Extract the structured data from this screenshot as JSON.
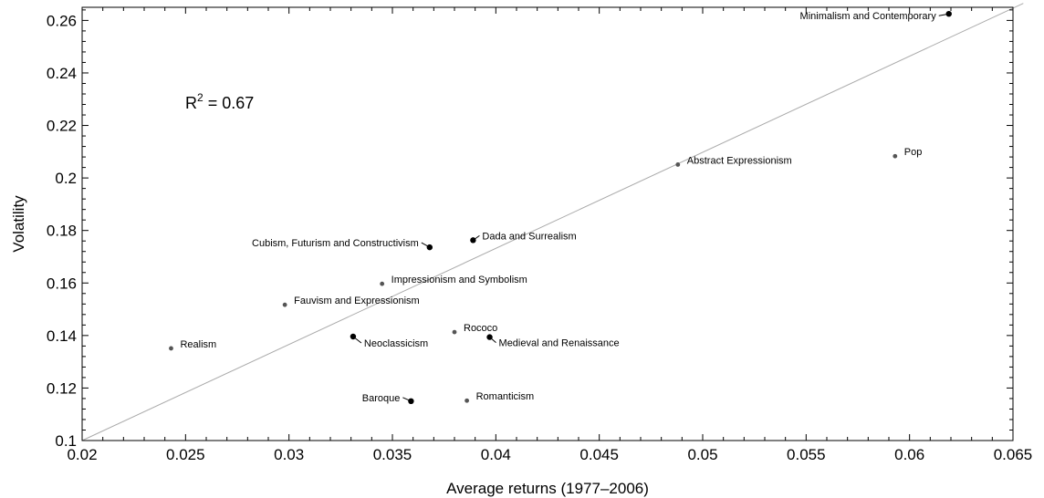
{
  "chart_data": {
    "type": "scatter",
    "xlabel": "Average returns (1977–2006)",
    "ylabel": "Volatility",
    "xlim": [
      0.02,
      0.065
    ],
    "ylim": [
      0.1,
      0.265
    ],
    "x_ticks": [
      "0.02",
      "0.025",
      "0.03",
      "0.035",
      "0.04",
      "0.045",
      "0.05",
      "0.055",
      "0.06",
      "0.065"
    ],
    "x_tick_values": [
      0.02,
      0.025,
      0.03,
      0.035,
      0.04,
      0.045,
      0.05,
      0.055,
      0.06,
      0.065
    ],
    "y_ticks": [
      "0.1",
      "0.12",
      "0.14",
      "0.16",
      "0.18",
      "0.2",
      "0.22",
      "0.24",
      "0.26"
    ],
    "y_tick_values": [
      0.1,
      0.12,
      0.14,
      0.16,
      0.18,
      0.2,
      0.22,
      0.24,
      0.26
    ],
    "grid": false,
    "annotation": {
      "base": "R",
      "sup": "2",
      "rest": " = 0.67"
    },
    "fit_line": {
      "x": [
        0.02,
        0.0655
      ],
      "y": [
        0.1,
        0.2665
      ]
    },
    "points": [
      {
        "label": "Minimalism and Contemporary",
        "x": 0.0619,
        "y": 0.2625,
        "large": true
      },
      {
        "label": "Pop",
        "x": 0.0593,
        "y": 0.2083,
        "large": false
      },
      {
        "label": "Abstract Expressionism",
        "x": 0.0488,
        "y": 0.2051,
        "large": false
      },
      {
        "label": "Dada and Surrealism",
        "x": 0.0389,
        "y": 0.1763,
        "large": true
      },
      {
        "label": "Cubism, Futurism and Constructivism",
        "x": 0.0368,
        "y": 0.1736,
        "large": true
      },
      {
        "label": "Impressionism and Symbolism",
        "x": 0.0345,
        "y": 0.1597,
        "large": false
      },
      {
        "label": "Fauvism and Expressionism",
        "x": 0.0298,
        "y": 0.1517,
        "large": false
      },
      {
        "label": "Realism",
        "x": 0.0243,
        "y": 0.1351,
        "large": false
      },
      {
        "label": "Neoclassicism",
        "x": 0.0331,
        "y": 0.1396,
        "large": true
      },
      {
        "label": "Rococo",
        "x": 0.038,
        "y": 0.1413,
        "large": false
      },
      {
        "label": "Medieval and Renaissance",
        "x": 0.0397,
        "y": 0.1394,
        "large": true
      },
      {
        "label": "Baroque",
        "x": 0.0359,
        "y": 0.115,
        "large": true
      },
      {
        "label": "Romanticism",
        "x": 0.0386,
        "y": 0.1152,
        "large": false
      }
    ]
  }
}
